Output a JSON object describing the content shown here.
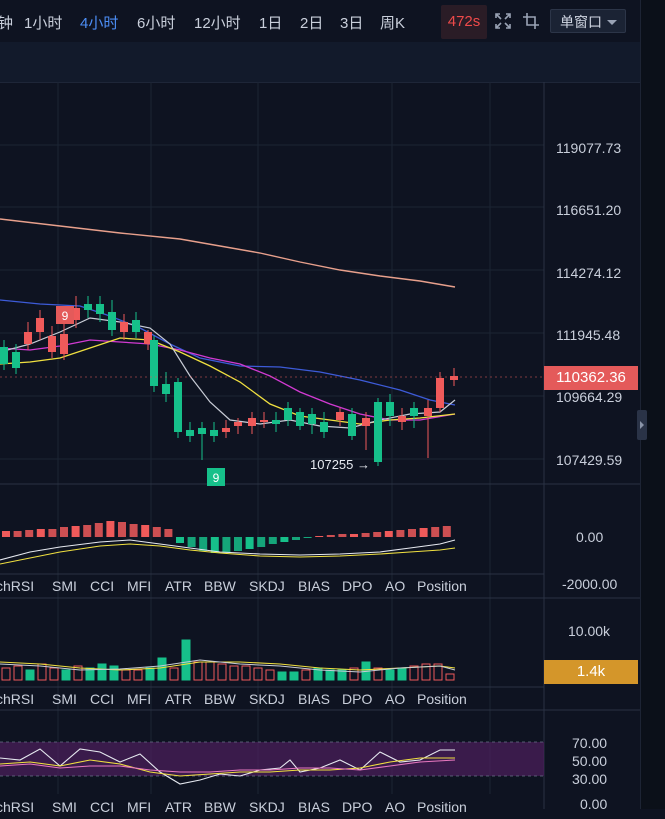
{
  "toolbar": {
    "timeframes": [
      {
        "label": "钟",
        "active": false
      },
      {
        "label": "1小时",
        "active": false
      },
      {
        "label": "4小时",
        "active": true
      },
      {
        "label": "6小时",
        "active": false
      },
      {
        "label": "12小时",
        "active": false
      },
      {
        "label": "1日",
        "active": false
      },
      {
        "label": "2日",
        "active": false
      },
      {
        "label": "3日",
        "active": false
      },
      {
        "label": "周K",
        "active": false
      }
    ],
    "countdown": "472s",
    "window_mode": "单窗口"
  },
  "price_axis": [
    "119077.73",
    "116651.20",
    "114274.12",
    "111945.48",
    "109664.29",
    "107429.59"
  ],
  "current_price": "110362.36",
  "low_annotation": "107255 →",
  "td_marker_top": "9",
  "td_marker_bottom": "9",
  "indicator_tabs": [
    "chRSI",
    "SMI",
    "CCI",
    "MFI",
    "ATR",
    "BBW",
    "SKDJ",
    "BIAS",
    "DPO",
    "AO",
    "Position"
  ],
  "macd_axis": [
    "0.00",
    "-2000.00"
  ],
  "volume_axis": [
    "10.00k"
  ],
  "volume_current": "1.4k",
  "rsi_axis": [
    "70.00",
    "50.00",
    "30.00",
    "0.00"
  ],
  "colors": {
    "up": "#ef5a5a",
    "down": "#16c08a",
    "background": "#0e1321",
    "accent": "#4c8ef5",
    "price_label": "#e45a5a",
    "volume_label": "#d4962a"
  }
}
